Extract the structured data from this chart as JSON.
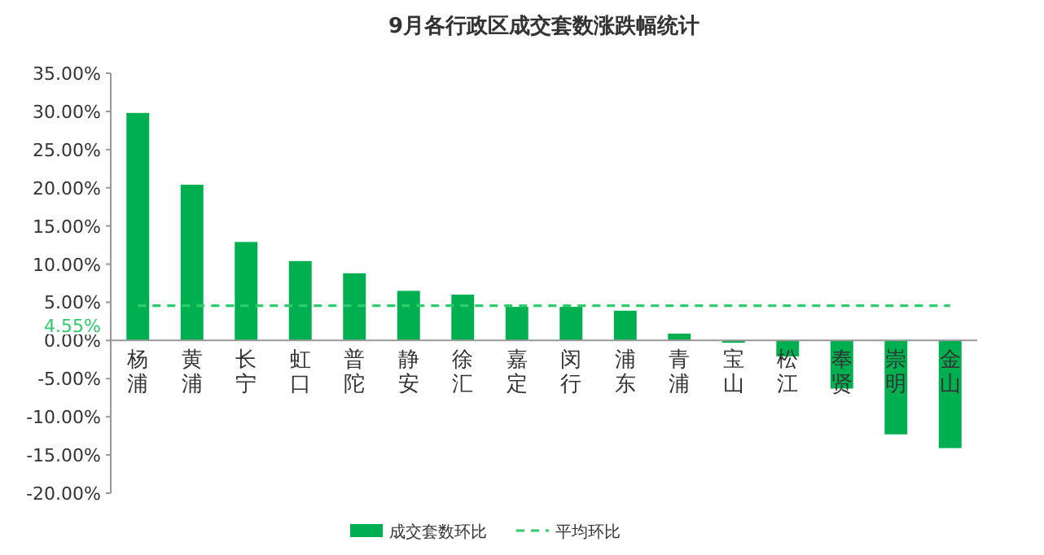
{
  "chart_data": {
    "type": "bar",
    "title": "9月各行政区成交套数涨跌幅统计",
    "categories": [
      "杨浦",
      "黄浦",
      "长宁",
      "虹口",
      "普陀",
      "静安",
      "徐汇",
      "嘉定",
      "闵行",
      "浦东",
      "青浦",
      "宝山",
      "松江",
      "奉贤",
      "崇明",
      "金山"
    ],
    "series": [
      {
        "name": "成交套数环比",
        "color": "#00b050",
        "values": [
          29.8,
          20.4,
          12.9,
          10.4,
          8.8,
          6.5,
          6.0,
          4.4,
          4.4,
          3.9,
          0.9,
          -0.3,
          -2.1,
          -6.3,
          -12.3,
          -14.1
        ]
      },
      {
        "name": "平均环比",
        "type": "line",
        "color": "#2ecc6a",
        "line_style": "dashed",
        "values": [
          4.55,
          4.55,
          4.55,
          4.55,
          4.55,
          4.55,
          4.55,
          4.55,
          4.55,
          4.55,
          4.55,
          4.55,
          4.55,
          4.55,
          4.55,
          4.55
        ]
      }
    ],
    "annotations": [
      "4.55%"
    ],
    "ylim": [
      -20,
      35
    ],
    "yticks": [
      {
        "value": 35,
        "label": "35.00%"
      },
      {
        "value": 30,
        "label": "30.00%"
      },
      {
        "value": 25,
        "label": "25.00%"
      },
      {
        "value": 20,
        "label": "20.00%"
      },
      {
        "value": 15,
        "label": "15.00%"
      },
      {
        "value": 10,
        "label": "10.00%"
      },
      {
        "value": 5,
        "label": "5.00%"
      },
      {
        "value": 0,
        "label": "0.00%"
      },
      {
        "value": -5,
        "label": "-5.00%"
      },
      {
        "value": -10,
        "label": "-10.00%"
      },
      {
        "value": -15,
        "label": "-15.00%"
      },
      {
        "value": -20,
        "label": "-20.00%"
      }
    ],
    "grid": false,
    "legend": "bottom"
  }
}
